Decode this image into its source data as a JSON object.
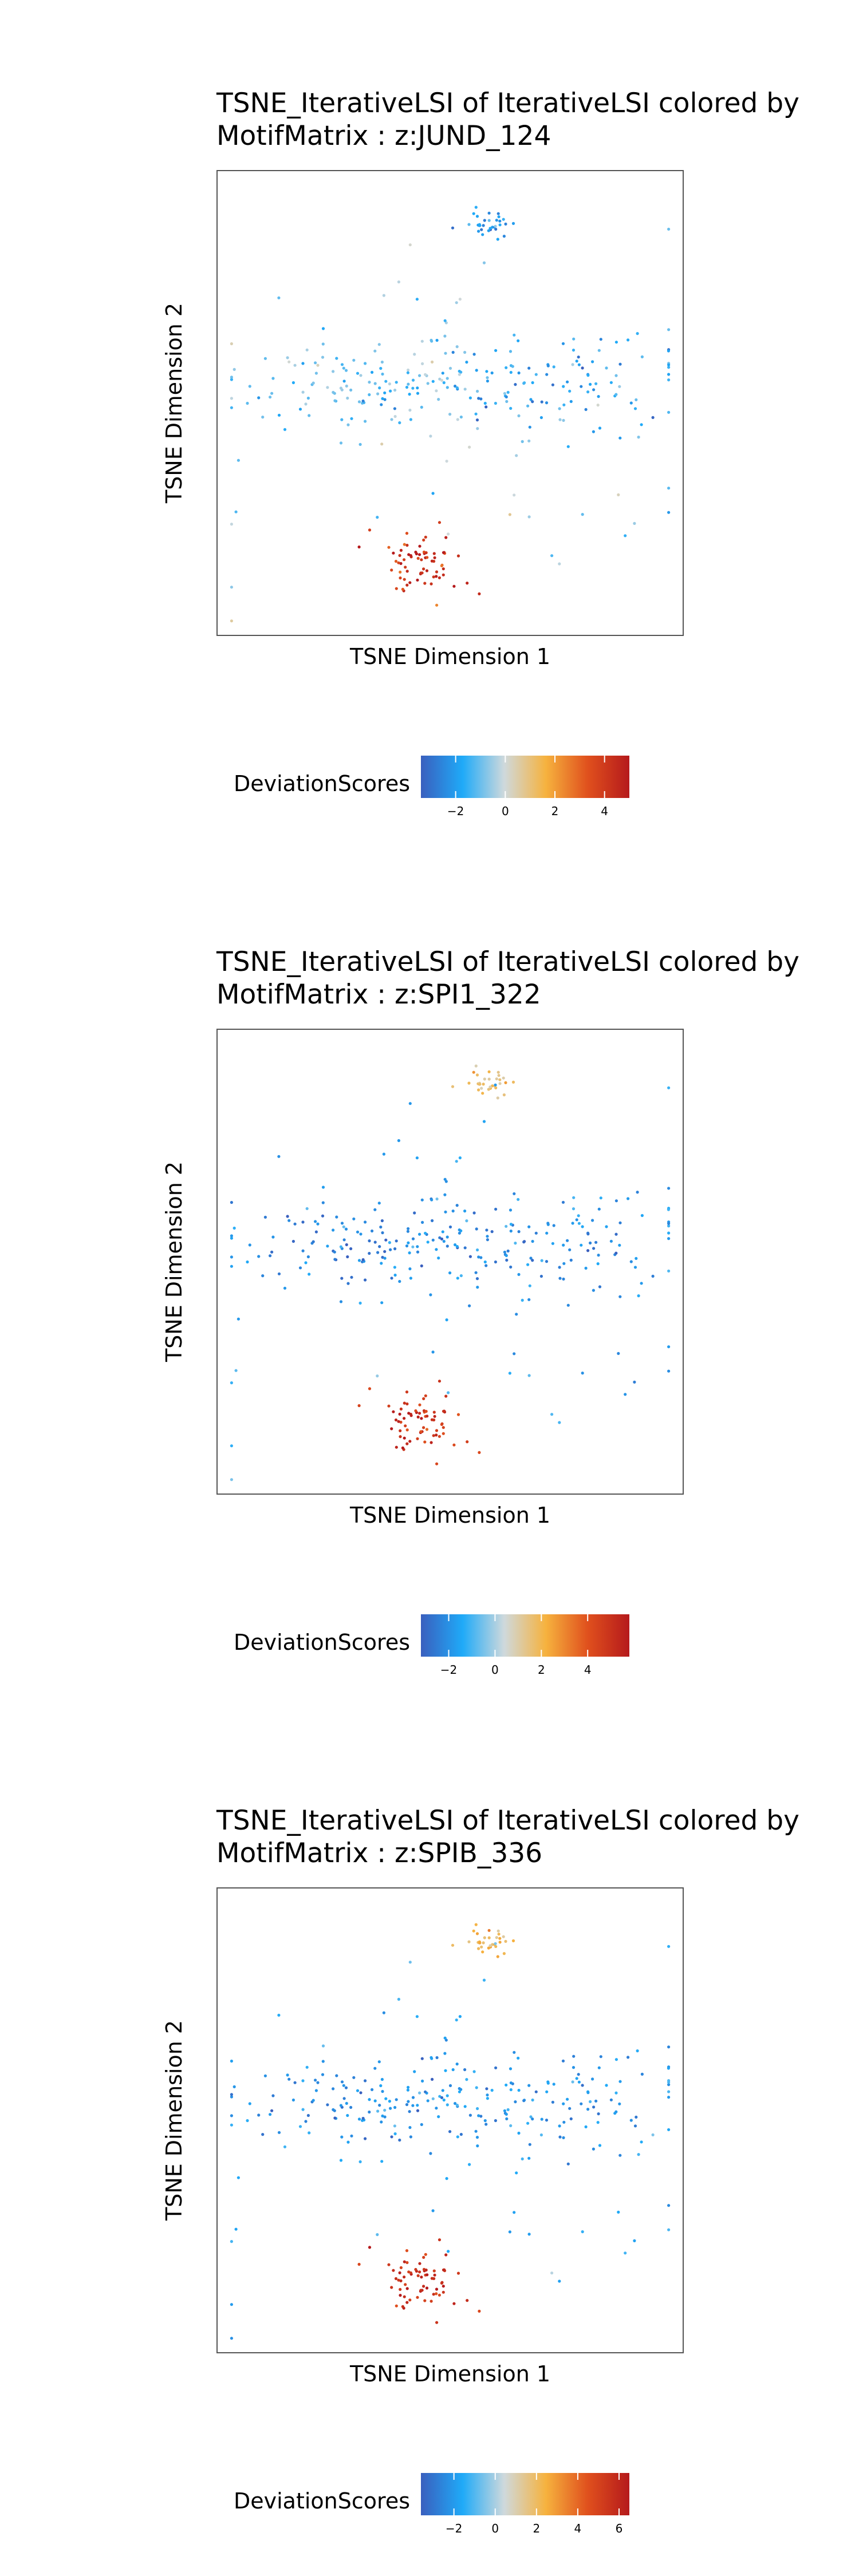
{
  "chart_data": [
    {
      "type": "scatter",
      "title": "TSNE_IterativeLSI of IterativeLSI colored by MotifMatrix : z:JUND_124",
      "title_lines": [
        "TSNE_IterativeLSI of IterativeLSI colored by",
        "MotifMatrix : z:JUND_124"
      ],
      "xlabel": "TSNE Dimension 1",
      "ylabel": "TSNE Dimension 2",
      "grid": false,
      "legend": {
        "title": "DeviationScores",
        "placement": "bottom",
        "range": [
          -3.4,
          5.0
        ],
        "ticks": [
          -2,
          0,
          2,
          4
        ],
        "tick_labels": [
          "−2",
          "0",
          "2",
          "4"
        ]
      },
      "colorscale": [
        "#3a5fbe",
        "#1faaf8",
        "#cfd9dc",
        "#f6b23e",
        "#e0501d",
        "#b51a1c"
      ],
      "clusters": [
        {
          "cx": 0.58,
          "cy": 0.885,
          "sx": 0.028,
          "sy": 0.018,
          "n": 32,
          "value": -2.2
        },
        {
          "cx": 0.33,
          "cy": 0.55,
          "sx": 0.16,
          "sy": 0.05,
          "n": 120,
          "value": -1.0
        },
        {
          "cx": 0.68,
          "cy": 0.55,
          "sx": 0.16,
          "sy": 0.05,
          "n": 110,
          "value": -1.8
        },
        {
          "cx": 0.44,
          "cy": 0.16,
          "sx": 0.05,
          "sy": 0.035,
          "n": 70,
          "value": 4.3
        },
        {
          "cx": 0.5,
          "cy": 0.45,
          "sx": 0.3,
          "sy": 0.22,
          "n": 55,
          "value": -0.8
        }
      ]
    },
    {
      "type": "scatter",
      "title": "TSNE_IterativeLSI of IterativeLSI colored by MotifMatrix : z:SPI1_322",
      "title_lines": [
        "TSNE_IterativeLSI of IterativeLSI colored by",
        "MotifMatrix : z:SPI1_322"
      ],
      "xlabel": "TSNE Dimension 1",
      "ylabel": "TSNE Dimension 2",
      "grid": false,
      "legend": {
        "title": "DeviationScores",
        "placement": "bottom",
        "range": [
          -3.2,
          5.8
        ],
        "ticks": [
          -2,
          0,
          2,
          4
        ],
        "tick_labels": [
          "−2",
          "0",
          "2",
          "4"
        ]
      },
      "colorscale": [
        "#3a5fbe",
        "#1faaf8",
        "#cfd9dc",
        "#f6b23e",
        "#e0501d",
        "#b51a1c"
      ],
      "clusters": [
        {
          "cx": 0.58,
          "cy": 0.885,
          "sx": 0.028,
          "sy": 0.018,
          "n": 32,
          "value": 1.6
        },
        {
          "cx": 0.33,
          "cy": 0.55,
          "sx": 0.16,
          "sy": 0.05,
          "n": 120,
          "value": -2.3
        },
        {
          "cx": 0.68,
          "cy": 0.55,
          "sx": 0.16,
          "sy": 0.05,
          "n": 110,
          "value": -2.0
        },
        {
          "cx": 0.44,
          "cy": 0.16,
          "sx": 0.05,
          "sy": 0.035,
          "n": 70,
          "value": 5.0
        },
        {
          "cx": 0.5,
          "cy": 0.45,
          "sx": 0.3,
          "sy": 0.22,
          "n": 55,
          "value": -1.5
        }
      ]
    },
    {
      "type": "scatter",
      "title": "TSNE_IterativeLSI of IterativeLSI colored by MotifMatrix : z:SPIB_336",
      "title_lines": [
        "TSNE_IterativeLSI of IterativeLSI colored by",
        "MotifMatrix : z:SPIB_336"
      ],
      "xlabel": "TSNE Dimension 1",
      "ylabel": "TSNE Dimension 2",
      "grid": false,
      "legend": {
        "title": "DeviationScores",
        "placement": "bottom",
        "range": [
          -3.6,
          6.5
        ],
        "ticks": [
          -2,
          0,
          2,
          4,
          6
        ],
        "tick_labels": [
          "−2",
          "0",
          "2",
          "4",
          "6"
        ]
      },
      "colorscale": [
        "#3a5fbe",
        "#1faaf8",
        "#cfd9dc",
        "#f6b23e",
        "#e0501d",
        "#b51a1c"
      ],
      "clusters": [
        {
          "cx": 0.58,
          "cy": 0.885,
          "sx": 0.028,
          "sy": 0.018,
          "n": 32,
          "value": 2.0
        },
        {
          "cx": 0.33,
          "cy": 0.55,
          "sx": 0.16,
          "sy": 0.05,
          "n": 120,
          "value": -2.4
        },
        {
          "cx": 0.68,
          "cy": 0.55,
          "sx": 0.16,
          "sy": 0.05,
          "n": 110,
          "value": -2.1
        },
        {
          "cx": 0.44,
          "cy": 0.16,
          "sx": 0.05,
          "sy": 0.035,
          "n": 70,
          "value": 5.6
        },
        {
          "cx": 0.5,
          "cy": 0.45,
          "sx": 0.3,
          "sy": 0.22,
          "n": 55,
          "value": -1.6
        }
      ]
    }
  ]
}
